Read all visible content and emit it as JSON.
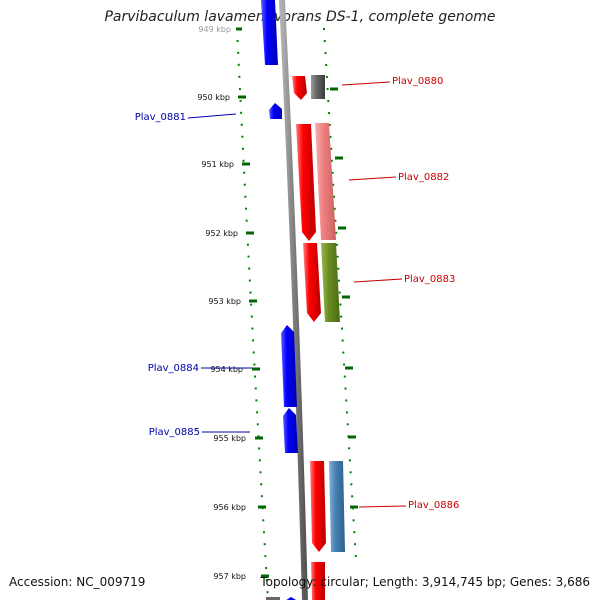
{
  "title": "Parvibaculum lavamentivorans DS-1, complete genome",
  "accession": "Accession: NC_009719",
  "summary": "Topology: circular; Length: 3,914,745 bp; Genes: 3,686",
  "ticks": [
    "949 kbp",
    "950 kbp",
    "951 kbp",
    "952 kbp",
    "953 kbp",
    "954 kbp",
    "955 kbp",
    "956 kbp",
    "957 kbp"
  ],
  "genes": [
    "Plav_0880",
    "Plav_0881",
    "Plav_0882",
    "Plav_0883",
    "Plav_0884",
    "Plav_0885",
    "Plav_0886"
  ],
  "colors": {
    "forward": "#ff0000",
    "reverse": "#0000ff",
    "label_forward": "#cc0000",
    "label_reverse": "#0000aa",
    "backbone": "#808080",
    "tick": "#006600",
    "gene_0880_feature": "#555555",
    "gene_0882_feature": "#f08080",
    "gene_0883_feature": "#6b8e23",
    "gene_0886_feature": "#4682b4"
  }
}
